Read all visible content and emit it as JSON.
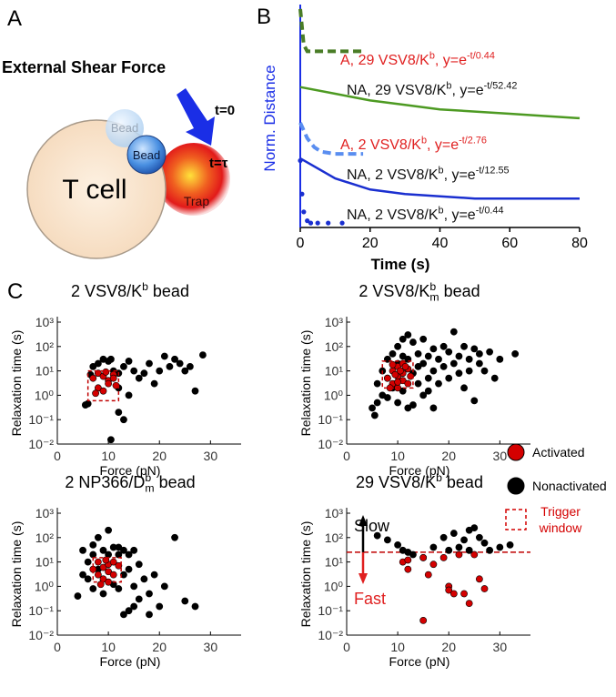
{
  "panels": [
    "A",
    "B",
    "C"
  ],
  "diagram": {
    "title": "External Shear Force",
    "cell": "T cell",
    "bead_ghost": "Bead",
    "bead": "Bead",
    "trap": "Trap",
    "t0": "t=0",
    "ttau": "t=τ"
  },
  "legend": {
    "items": [
      {
        "label": [
          "Activated"
        ],
        "color": "#d40000"
      },
      {
        "label": [
          "Nonactivated"
        ],
        "color": "#000000"
      },
      {
        "label": [
          "Trigger",
          "window"
        ],
        "color": "#d40000"
      }
    ]
  },
  "chart_data": [
    {
      "type": "line",
      "xlabel": "Time (s)",
      "ylabel": "Norm. Distance",
      "xlim": [
        0,
        80
      ],
      "xticks": [
        0,
        20,
        40,
        60,
        80
      ],
      "ylim": [
        0,
        1
      ],
      "series": [
        {
          "label": [
            {
              "text": "A, 29 VSV8/K"
            },
            {
              "text": "b",
              "script": "sup"
            },
            {
              "text": ", y=e"
            },
            {
              "text": "-t/0.44",
              "script": "sup"
            }
          ],
          "label_color": "#e02020",
          "color": "#4a7d27",
          "style": "dash",
          "x": [
            0,
            0.5,
            1,
            2,
            5,
            10,
            15,
            18
          ],
          "values": [
            0.98,
            0.9,
            0.82,
            0.79,
            0.79,
            0.79,
            0.79,
            0.79
          ]
        },
        {
          "label": [
            {
              "text": "NA, 29 VSV8/K"
            },
            {
              "text": "b",
              "script": "sup"
            },
            {
              "text": ", y=e"
            },
            {
              "text": "-t/52.42",
              "script": "sup"
            }
          ],
          "label_color": "#111111",
          "color": "#4d9a22",
          "style": "solid",
          "x": [
            0,
            10,
            20,
            30,
            40,
            50,
            60,
            70,
            80
          ],
          "values": [
            0.63,
            0.6,
            0.57,
            0.55,
            0.53,
            0.52,
            0.51,
            0.5,
            0.49
          ]
        },
        {
          "label": [
            {
              "text": "A, 2 VSV8/K"
            },
            {
              "text": "b",
              "script": "sup"
            },
            {
              "text": ", y=e"
            },
            {
              "text": "-t/2.76",
              "script": "sup"
            }
          ],
          "label_color": "#e02020",
          "color": "#5a8ef0",
          "style": "dash",
          "x": [
            0,
            2,
            4,
            6,
            10,
            15,
            18
          ],
          "values": [
            0.47,
            0.4,
            0.36,
            0.34,
            0.33,
            0.33,
            0.33
          ]
        },
        {
          "label": [
            {
              "text": "NA, 2 VSV8/K"
            },
            {
              "text": "b",
              "script": "sup"
            },
            {
              "text": ", y=e"
            },
            {
              "text": "-t/12.55",
              "script": "sup"
            }
          ],
          "label_color": "#111111",
          "color": "#1a2fd0",
          "style": "solid",
          "x": [
            0,
            10,
            20,
            30,
            40,
            50,
            60,
            70,
            80
          ],
          "values": [
            0.31,
            0.22,
            0.17,
            0.15,
            0.14,
            0.13,
            0.13,
            0.13,
            0.13
          ]
        },
        {
          "label": [
            {
              "text": "NA, 2 VSV8/K"
            },
            {
              "text": "b",
              "script": "sup"
            },
            {
              "text": ", y=e"
            },
            {
              "text": "-t/0.44",
              "script": "sup"
            }
          ],
          "label_color": "#111111",
          "color": "#1a2fd0",
          "style": "dot",
          "x": [
            0,
            0.5,
            1,
            2,
            3,
            5,
            8,
            12
          ],
          "values": [
            0.3,
            0.15,
            0.07,
            0.03,
            0.02,
            0.02,
            0.02,
            0.02
          ]
        }
      ]
    },
    {
      "type": "scatter",
      "title": [
        {
          "text": "2 VSV8/K"
        },
        {
          "text": "b",
          "script": "sup"
        },
        {
          "text": " bead"
        }
      ],
      "xlabel": "Force (pN)",
      "ylabel": "Relaxation time (s)",
      "xlim": [
        0,
        36
      ],
      "xticks": [
        0,
        10,
        20,
        30
      ],
      "ylim": [
        0.01,
        1000
      ],
      "log_y": true,
      "yticks": [
        {
          "value": 1000,
          "label": "10³"
        },
        {
          "value": 100,
          "label": "10²"
        },
        {
          "value": 10,
          "label": "10¹"
        },
        {
          "value": 1,
          "label": "10⁰"
        },
        {
          "value": 0.1,
          "label": "10⁻¹"
        },
        {
          "value": 0.01,
          "label": "10⁻²"
        }
      ],
      "window": {
        "x": [
          6,
          12
        ],
        "y": [
          0.6,
          10
        ]
      },
      "series": [
        {
          "color": "#000000",
          "x": [
            5.5,
            6,
            7,
            6.5,
            8,
            9,
            10,
            10.5,
            11,
            12,
            13,
            14,
            15,
            16,
            17,
            18,
            19,
            20,
            21,
            22,
            23,
            24,
            25,
            27,
            26,
            28.5,
            12,
            13,
            10.5,
            14,
            12
          ],
          "values": [
            0.4,
            0.45,
            15,
            7,
            20,
            30,
            25,
            30,
            10,
            8,
            15,
            25,
            10,
            5,
            8,
            20,
            3,
            10,
            40,
            15,
            30,
            20,
            10,
            1.5,
            15,
            45,
            0.2,
            0.1,
            0.015,
            1,
            2
          ]
        },
        {
          "color": "#d40000",
          "x": [
            7,
            8,
            9,
            10,
            11,
            8,
            9,
            10,
            11,
            7.5,
            9.5,
            11.5
          ],
          "values": [
            5,
            8,
            6,
            4,
            7,
            2,
            1.5,
            3,
            5,
            1.2,
            9,
            2.5
          ]
        }
      ]
    },
    {
      "type": "scatter",
      "title": [
        {
          "text": "2 VSV8/K"
        },
        {
          "text": "b",
          "script": "sup"
        },
        {
          "text": "m",
          "script": "sub"
        },
        {
          "text": " bead"
        }
      ],
      "xlabel": "Force (pN)",
      "ylabel": "Relaxation time (s)",
      "xlim": [
        0,
        36
      ],
      "xticks": [
        0,
        10,
        20,
        30
      ],
      "ylim": [
        0.01,
        1000
      ],
      "log_y": true,
      "yticks": [
        {
          "value": 1000,
          "label": "10³"
        },
        {
          "value": 100,
          "label": "10²"
        },
        {
          "value": 10,
          "label": "10¹"
        },
        {
          "value": 1,
          "label": "10⁰"
        },
        {
          "value": 0.1,
          "label": "10⁻¹"
        },
        {
          "value": 0.01,
          "label": "10⁻²"
        }
      ],
      "window": {
        "x": [
          7,
          13
        ],
        "y": [
          2,
          25
        ]
      },
      "series": [
        {
          "color": "#000000",
          "x": [
            5,
            5.5,
            6,
            6,
            7,
            7,
            8,
            8,
            9,
            9,
            10,
            10,
            11,
            11,
            12,
            12,
            12,
            13,
            13,
            13,
            14,
            14,
            15,
            15,
            15,
            16,
            16,
            17,
            17,
            17,
            18,
            18,
            19,
            19,
            20,
            20,
            21,
            21,
            22,
            22,
            23,
            23,
            24,
            24,
            25,
            25,
            26,
            26,
            27,
            28,
            29,
            30,
            33,
            10,
            8,
            11,
            14,
            16
          ],
          "values": [
            0.3,
            0.15,
            0.5,
            3,
            1,
            10,
            30,
            0.8,
            50,
            2,
            100,
            0.5,
            200,
            1.5,
            300,
            30,
            0.3,
            150,
            8,
            0.4,
            50,
            3,
            200,
            20,
            1,
            40,
            5,
            80,
            10,
            0.3,
            30,
            3,
            100,
            15,
            60,
            5,
            400,
            20,
            40,
            8,
            100,
            2,
            30,
            10,
            80,
            0.6,
            20,
            50,
            10,
            60,
            5,
            30,
            50,
            20,
            5,
            40,
            15,
            1.5
          ]
        },
        {
          "color": "#d40000",
          "x": [
            8,
            9,
            9,
            10,
            10,
            10,
            11,
            11,
            11,
            12,
            12,
            8.5,
            9.5,
            10.5,
            11.5,
            12.5,
            9,
            10
          ],
          "values": [
            5,
            10,
            3,
            15,
            6,
            2,
            8,
            4,
            20,
            12,
            3,
            2,
            7,
            10,
            15,
            6,
            18,
            3.5
          ]
        }
      ]
    },
    {
      "type": "scatter",
      "title": [
        {
          "text": "2 NP366/D"
        },
        {
          "text": "b",
          "script": "sup"
        },
        {
          "text": "m",
          "script": "sub"
        },
        {
          "text": " bead"
        }
      ],
      "xlabel": "Force (pN)",
      "ylabel": "Relaxation time (s)",
      "xlim": [
        0,
        36
      ],
      "xticks": [
        0,
        10,
        20,
        30
      ],
      "ylim": [
        0.01,
        1000
      ],
      "log_y": true,
      "yticks": [
        {
          "value": 1000,
          "label": "10³"
        },
        {
          "value": 100,
          "label": "10²"
        },
        {
          "value": 10,
          "label": "10¹"
        },
        {
          "value": 1,
          "label": "10⁰"
        },
        {
          "value": 0.1,
          "label": "10⁻¹"
        },
        {
          "value": 0.01,
          "label": "10⁻²"
        }
      ],
      "window": {
        "x": [
          7,
          12.5
        ],
        "y": [
          1.5,
          15
        ]
      },
      "series": [
        {
          "color": "#000000",
          "x": [
            4,
            5,
            5,
            6,
            6,
            7,
            7,
            7,
            8,
            8,
            9,
            9,
            10,
            10,
            11,
            11,
            12,
            12,
            13,
            13,
            13,
            14,
            14,
            15,
            15,
            15,
            16,
            16,
            17,
            18,
            19,
            20,
            21,
            23,
            25,
            27,
            18,
            12,
            14
          ],
          "values": [
            0.4,
            30,
            3,
            10,
            2,
            50,
            20,
            0.8,
            100,
            5,
            30,
            0.5,
            200,
            20,
            40,
            1.2,
            20,
            0.8,
            30,
            3,
            0.07,
            20,
            5,
            30,
            1,
            0.15,
            8,
            0.3,
            2,
            0.5,
            3,
            0.15,
            1,
            100,
            0.25,
            0.15,
            0.07,
            40,
            0.1
          ]
        },
        {
          "color": "#d40000",
          "x": [
            7,
            8,
            8,
            9,
            9,
            10,
            10,
            10,
            11,
            11,
            12,
            8.5,
            9.5
          ],
          "values": [
            5,
            10,
            3,
            6,
            2,
            8,
            4,
            1.5,
            10,
            3,
            7,
            1.2,
            12
          ]
        }
      ]
    },
    {
      "type": "scatter",
      "title": [
        {
          "text": "29  VSV8/K"
        },
        {
          "text": "b",
          "script": "sup"
        },
        {
          "text": " bead"
        }
      ],
      "xlabel": "Force (pN)",
      "ylabel": "Relaxation time (s)",
      "xlim": [
        0,
        36
      ],
      "xticks": [
        0,
        10,
        20,
        30
      ],
      "ylim": [
        0.01,
        1000
      ],
      "log_y": true,
      "yticks": [
        {
          "value": 1000,
          "label": "10³"
        },
        {
          "value": 100,
          "label": "10²"
        },
        {
          "value": 10,
          "label": "10¹"
        },
        {
          "value": 1,
          "label": "10⁰"
        },
        {
          "value": 0.1,
          "label": "10⁻¹"
        },
        {
          "value": 0.01,
          "label": "10⁻²"
        }
      ],
      "threshold": 25,
      "annotations": {
        "slow": "Slow",
        "fast": "Fast"
      },
      "series": [
        {
          "color": "#000000",
          "x": [
            6,
            8,
            10,
            11,
            12,
            13,
            15,
            17,
            19,
            20,
            21,
            22,
            23,
            24,
            25,
            26,
            27,
            28,
            30,
            32,
            24
          ],
          "values": [
            120,
            80,
            50,
            30,
            25,
            20,
            15,
            40,
            100,
            30,
            150,
            40,
            80,
            200,
            250,
            100,
            60,
            30,
            40,
            50,
            30
          ]
        },
        {
          "color": "#d40000",
          "x": [
            11,
            12,
            15,
            16,
            17,
            19,
            20,
            20,
            21,
            22,
            23,
            24,
            25,
            26,
            27,
            15,
            12
          ],
          "values": [
            10,
            12,
            15,
            3,
            8,
            15,
            1,
            0.7,
            0.5,
            20,
            0.5,
            0.2,
            20,
            2,
            0.8,
            0.04,
            5
          ]
        }
      ]
    }
  ]
}
